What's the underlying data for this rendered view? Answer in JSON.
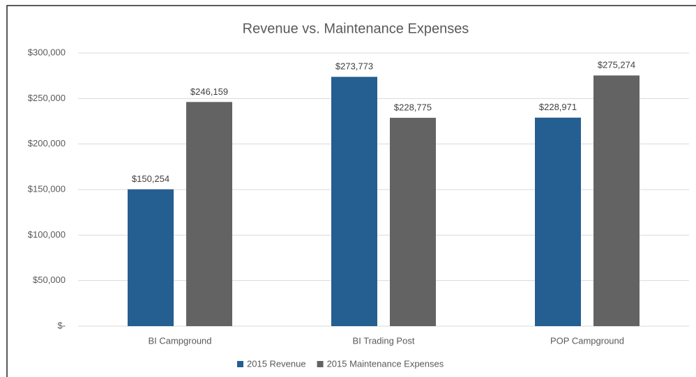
{
  "chart_data": {
    "type": "bar",
    "title": "Revenue vs. Maintenance Expenses",
    "categories": [
      "BI Campground",
      "BI Trading Post",
      "POP Campground"
    ],
    "series": [
      {
        "name": "2015 Revenue",
        "color": "#255e91",
        "values": [
          150254,
          273773,
          228971
        ],
        "value_labels": [
          "$150,254",
          "$273,773",
          "$228,971"
        ]
      },
      {
        "name": "2015 Maintenance Expenses",
        "color": "#636363",
        "values": [
          246159,
          228775,
          275274
        ],
        "value_labels": [
          "$246,159",
          "$228,775",
          "$275,274"
        ]
      }
    ],
    "ylim": [
      0,
      300000
    ],
    "yticks": [
      {
        "value": 0,
        "label": "$-"
      },
      {
        "value": 50000,
        "label": "$50,000"
      },
      {
        "value": 100000,
        "label": "$100,000"
      },
      {
        "value": 150000,
        "label": "$150,000"
      },
      {
        "value": 200000,
        "label": "$200,000"
      },
      {
        "value": 250000,
        "label": "$250,000"
      },
      {
        "value": 300000,
        "label": "$300,000"
      }
    ],
    "grid": true,
    "legend": "bottom"
  }
}
